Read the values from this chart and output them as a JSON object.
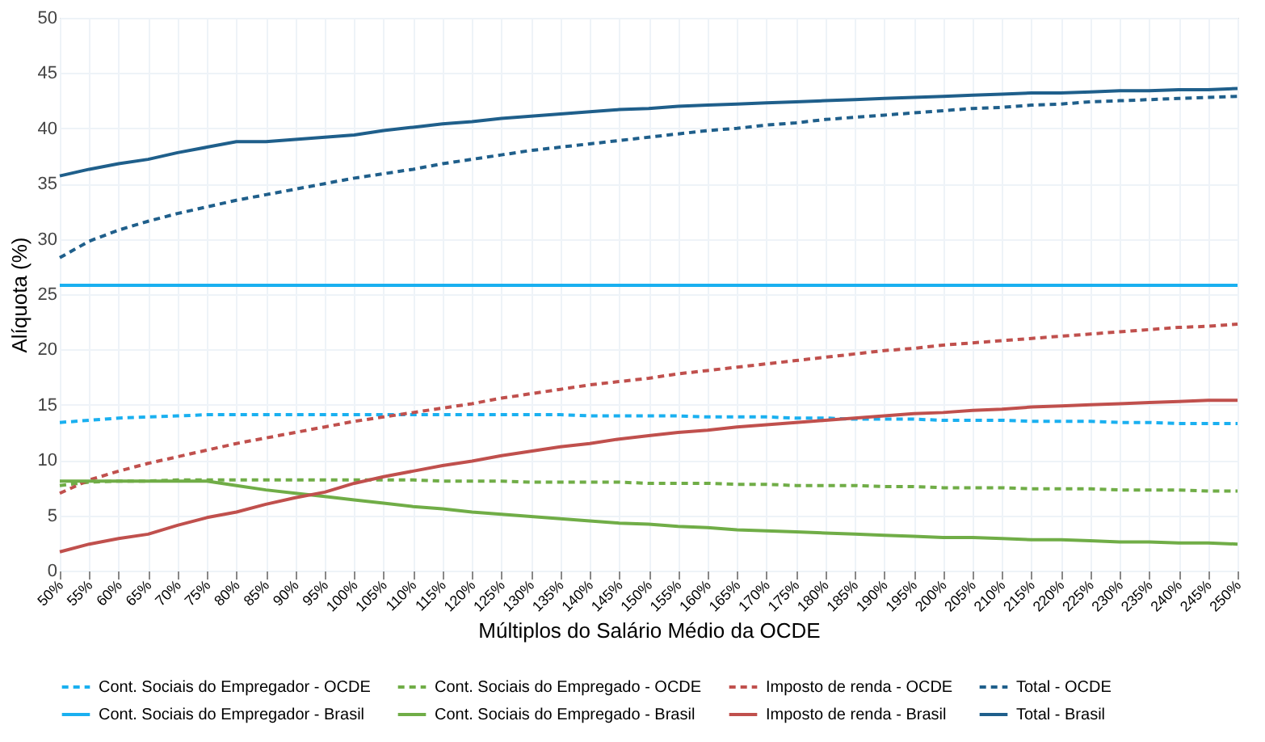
{
  "chart_data": {
    "type": "line",
    "xlabel": "Múltiplos do Salário Médio da OCDE",
    "ylabel": "Alíquota (%)",
    "categories": [
      "50%",
      "55%",
      "60%",
      "65%",
      "70%",
      "75%",
      "80%",
      "85%",
      "90%",
      "95%",
      "100%",
      "105%",
      "110%",
      "115%",
      "120%",
      "125%",
      "130%",
      "135%",
      "140%",
      "145%",
      "150%",
      "155%",
      "160%",
      "165%",
      "170%",
      "175%",
      "180%",
      "185%",
      "190%",
      "195%",
      "200%",
      "205%",
      "210%",
      "215%",
      "220%",
      "225%",
      "230%",
      "235%",
      "240%",
      "245%",
      "250%"
    ],
    "ylim": [
      0,
      50
    ],
    "yticks": [
      0,
      5,
      10,
      15,
      20,
      25,
      30,
      35,
      40,
      45,
      50
    ],
    "grid": true,
    "legend": "bottom",
    "marker": "none",
    "series": [
      {
        "name": "Cont. Sociais do Empregador - OCDE",
        "color": "#1ab0f0",
        "line_style": "dashed",
        "values": [
          13.4,
          13.6,
          13.8,
          13.9,
          14.0,
          14.1,
          14.1,
          14.1,
          14.1,
          14.1,
          14.1,
          14.1,
          14.1,
          14.1,
          14.1,
          14.1,
          14.1,
          14.1,
          14.0,
          14.0,
          14.0,
          14.0,
          13.9,
          13.9,
          13.9,
          13.8,
          13.8,
          13.7,
          13.7,
          13.7,
          13.6,
          13.6,
          13.6,
          13.5,
          13.5,
          13.5,
          13.4,
          13.4,
          13.3,
          13.3,
          13.3
        ]
      },
      {
        "name": "Cont. Sociais do Empregado - OCDE",
        "color": "#70ad47",
        "line_style": "dashed",
        "values": [
          7.7,
          8.0,
          8.1,
          8.1,
          8.2,
          8.2,
          8.2,
          8.2,
          8.2,
          8.2,
          8.2,
          8.2,
          8.2,
          8.1,
          8.1,
          8.1,
          8.0,
          8.0,
          8.0,
          8.0,
          7.9,
          7.9,
          7.9,
          7.8,
          7.8,
          7.7,
          7.7,
          7.7,
          7.6,
          7.6,
          7.5,
          7.5,
          7.5,
          7.4,
          7.4,
          7.4,
          7.3,
          7.3,
          7.3,
          7.2,
          7.2
        ]
      },
      {
        "name": "Imposto de renda - OCDE",
        "color": "#c0504d",
        "line_style": "dashed",
        "values": [
          7.0,
          8.2,
          9.0,
          9.7,
          10.3,
          10.9,
          11.5,
          12.0,
          12.5,
          13.0,
          13.5,
          13.9,
          14.3,
          14.7,
          15.1,
          15.6,
          16.0,
          16.4,
          16.8,
          17.1,
          17.4,
          17.8,
          18.1,
          18.4,
          18.7,
          19.0,
          19.3,
          19.6,
          19.9,
          20.1,
          20.4,
          20.6,
          20.8,
          21.0,
          21.2,
          21.4,
          21.6,
          21.8,
          22.0,
          22.1,
          22.3
        ]
      },
      {
        "name": "Total - OCDE",
        "color": "#1f5f8b",
        "line_style": "dashed",
        "values": [
          28.3,
          29.8,
          30.8,
          31.6,
          32.3,
          32.9,
          33.5,
          34.0,
          34.5,
          35.0,
          35.5,
          35.9,
          36.3,
          36.8,
          37.2,
          37.6,
          38.0,
          38.3,
          38.6,
          38.9,
          39.2,
          39.5,
          39.8,
          40.0,
          40.3,
          40.5,
          40.8,
          41.0,
          41.2,
          41.4,
          41.6,
          41.8,
          41.9,
          42.1,
          42.2,
          42.4,
          42.5,
          42.6,
          42.7,
          42.8,
          42.9
        ]
      },
      {
        "name": "Cont. Sociais do Empregador - Brasil",
        "color": "#1ab0f0",
        "line_style": "solid",
        "values": [
          25.8,
          25.8,
          25.8,
          25.8,
          25.8,
          25.8,
          25.8,
          25.8,
          25.8,
          25.8,
          25.8,
          25.8,
          25.8,
          25.8,
          25.8,
          25.8,
          25.8,
          25.8,
          25.8,
          25.8,
          25.8,
          25.8,
          25.8,
          25.8,
          25.8,
          25.8,
          25.8,
          25.8,
          25.8,
          25.8,
          25.8,
          25.8,
          25.8,
          25.8,
          25.8,
          25.8,
          25.8,
          25.8,
          25.8,
          25.8,
          25.8
        ]
      },
      {
        "name": "Cont. Sociais do Empregado - Brasil",
        "color": "#70ad47",
        "line_style": "solid",
        "values": [
          8.1,
          8.1,
          8.1,
          8.1,
          8.1,
          8.1,
          7.7,
          7.3,
          7.0,
          6.7,
          6.4,
          6.1,
          5.8,
          5.6,
          5.3,
          5.1,
          4.9,
          4.7,
          4.5,
          4.3,
          4.2,
          4.0,
          3.9,
          3.7,
          3.6,
          3.5,
          3.4,
          3.3,
          3.2,
          3.1,
          3.0,
          3.0,
          2.9,
          2.8,
          2.8,
          2.7,
          2.6,
          2.6,
          2.5,
          2.5,
          2.4
        ]
      },
      {
        "name": "Imposto de renda - Brasil",
        "color": "#c0504d",
        "line_style": "solid",
        "values": [
          1.7,
          2.4,
          2.9,
          3.3,
          4.1,
          4.8,
          5.3,
          6.0,
          6.6,
          7.1,
          7.9,
          8.5,
          9.0,
          9.5,
          9.9,
          10.4,
          10.8,
          11.2,
          11.5,
          11.9,
          12.2,
          12.5,
          12.7,
          13.0,
          13.2,
          13.4,
          13.6,
          13.8,
          14.0,
          14.2,
          14.3,
          14.5,
          14.6,
          14.8,
          14.9,
          15.0,
          15.1,
          15.2,
          15.3,
          15.4,
          15.4
        ]
      },
      {
        "name": "Total - Brasil",
        "color": "#1f5f8b",
        "line_style": "solid",
        "values": [
          35.7,
          36.3,
          36.8,
          37.2,
          37.8,
          38.3,
          38.8,
          38.8,
          39.0,
          39.2,
          39.4,
          39.8,
          40.1,
          40.4,
          40.6,
          40.9,
          41.1,
          41.3,
          41.5,
          41.7,
          41.8,
          42.0,
          42.1,
          42.2,
          42.3,
          42.4,
          42.5,
          42.6,
          42.7,
          42.8,
          42.9,
          43.0,
          43.1,
          43.2,
          43.2,
          43.3,
          43.4,
          43.4,
          43.5,
          43.5,
          43.6
        ]
      }
    ]
  }
}
